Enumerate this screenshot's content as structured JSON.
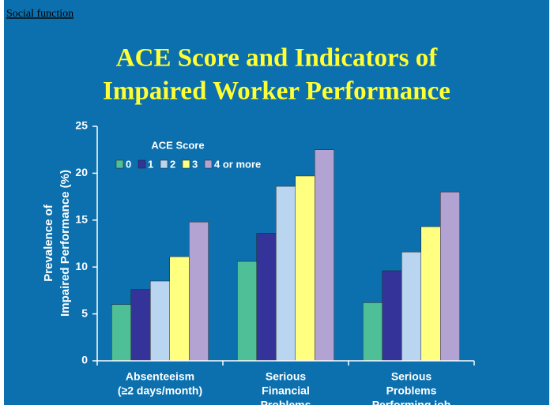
{
  "header": "Social function",
  "chart_data": {
    "type": "bar",
    "title": [
      "ACE Score and Indicators of",
      "Impaired Worker Performance"
    ],
    "ylabel": [
      "Prevalence of",
      "Impaired Performance (%)"
    ],
    "legend_title": "ACE Score",
    "categories": [
      [
        "Absenteeism",
        "(≥2 days/month)"
      ],
      [
        "Serious",
        "Financial",
        "Problems"
      ],
      [
        "Serious",
        "Problems",
        "Performing job"
      ]
    ],
    "series": [
      {
        "name": "0",
        "color": "#4fbf98",
        "values": [
          6.0,
          10.6,
          6.2
        ]
      },
      {
        "name": "1",
        "color": "#333399",
        "values": [
          7.6,
          13.6,
          9.6
        ]
      },
      {
        "name": "2",
        "color": "#b9d5ef",
        "values": [
          8.5,
          18.6,
          11.6
        ]
      },
      {
        "name": "3",
        "color": "#ffff80",
        "values": [
          11.1,
          19.7,
          14.3
        ]
      },
      {
        "name": "4 or more",
        "color": "#b3a3d3",
        "values": [
          14.8,
          22.5,
          18.0
        ]
      }
    ],
    "ylim": [
      0,
      25
    ],
    "yticks": [
      0,
      5,
      10,
      15,
      20,
      25
    ]
  }
}
